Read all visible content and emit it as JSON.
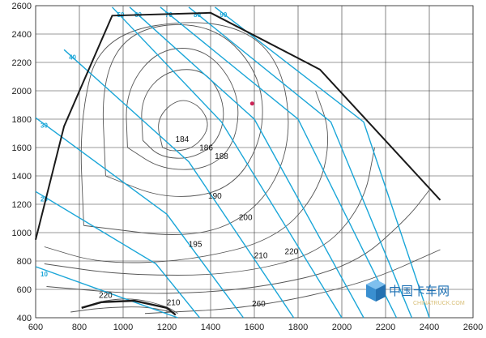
{
  "chart_data": {
    "type": "contour",
    "xlim": [
      600,
      2600
    ],
    "ylim": [
      400,
      2600
    ],
    "x_ticks": [
      "600",
      "800",
      "1000",
      "1200",
      "1400",
      "1600",
      "1800",
      "2000",
      "2200",
      "2400",
      "2600"
    ],
    "y_ticks": [
      "400",
      "600",
      "800",
      "1000",
      "1200",
      "1400",
      "1600",
      "1800",
      "2000",
      "2200",
      "2400",
      "2600"
    ],
    "grid": true,
    "max_envelope": [
      [
        600,
        950
      ],
      [
        730,
        1750
      ],
      [
        950,
        2530
      ],
      [
        1400,
        2550
      ],
      [
        1900,
        2150
      ],
      [
        2450,
        1230
      ]
    ],
    "power_lines": [
      {
        "label": "10",
        "points": [
          [
            600,
            760
          ],
          [
            1250,
            400
          ]
        ]
      },
      {
        "label": "20",
        "points": [
          [
            600,
            1290
          ],
          [
            1150,
            780
          ],
          [
            1350,
            400
          ]
        ]
      },
      {
        "label": "30",
        "points": [
          [
            600,
            1810
          ],
          [
            1200,
            1130
          ],
          [
            1550,
            400
          ]
        ]
      },
      {
        "label": "40",
        "points": [
          [
            730,
            2290
          ],
          [
            1300,
            1500
          ],
          [
            1780,
            400
          ]
        ]
      },
      {
        "label": "50",
        "points": [
          [
            950,
            2590
          ],
          [
            1450,
            1780
          ],
          [
            2000,
            400
          ]
        ]
      },
      {
        "label": "60",
        "points": [
          [
            1030,
            2590
          ],
          [
            1600,
            1800
          ],
          [
            2100,
            400
          ]
        ]
      },
      {
        "label": "70",
        "points": [
          [
            1170,
            2590
          ],
          [
            1800,
            1800
          ],
          [
            2250,
            400
          ]
        ]
      },
      {
        "label": "80",
        "points": [
          [
            1300,
            2590
          ],
          [
            1950,
            1780
          ],
          [
            2320,
            400
          ]
        ]
      },
      {
        "label": "90",
        "points": [
          [
            1420,
            2590
          ],
          [
            2100,
            1780
          ],
          [
            2400,
            400
          ]
        ]
      }
    ],
    "bsfc_labels": [
      {
        "label": "184",
        "x": 1270,
        "y": 1640
      },
      {
        "label": "186",
        "x": 1380,
        "y": 1580
      },
      {
        "label": "188",
        "x": 1450,
        "y": 1520
      },
      {
        "label": "190",
        "x": 1420,
        "y": 1240
      },
      {
        "label": "195",
        "x": 1330,
        "y": 900
      },
      {
        "label": "200",
        "x": 1560,
        "y": 1090
      },
      {
        "label": "210",
        "x": 1630,
        "y": 820
      },
      {
        "label": "220",
        "x": 1770,
        "y": 850
      },
      {
        "label": "210",
        "x": 1230,
        "y": 490
      },
      {
        "label": "220",
        "x": 920,
        "y": 540
      },
      {
        "label": "260",
        "x": 1620,
        "y": 480
      }
    ],
    "marker": {
      "x": 1590,
      "y": 1910
    }
  },
  "colors": {
    "envelope": "#1a1a1a",
    "power": "#1aa6d8",
    "bsfc": "#555555",
    "grid": "#333333",
    "marker": "#cc2255"
  },
  "watermark": {
    "chinese": "中国卡车网",
    "english": "CHINATRUCK.COM"
  }
}
